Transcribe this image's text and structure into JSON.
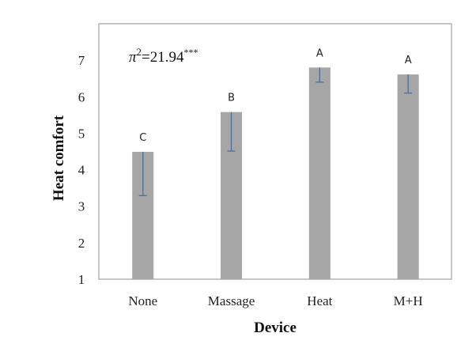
{
  "chart_data": {
    "type": "bar",
    "title": "",
    "xlabel": "Device",
    "ylabel": "Heat comfort",
    "categories": [
      "None",
      "Massage",
      "Heat",
      "M+H"
    ],
    "values": [
      4.49,
      5.58,
      6.8,
      6.61
    ],
    "error_minus": [
      1.2,
      1.07,
      0.4,
      0.51
    ],
    "group_letters": [
      "C",
      "B",
      "A",
      "A"
    ],
    "annotation": {
      "symbol": "π",
      "sup": "2",
      "text": "=21.94",
      "stars": "***"
    },
    "ylim": [
      1,
      8
    ],
    "yticks": [
      1,
      2,
      3,
      4,
      5,
      6,
      7
    ],
    "grid": false,
    "legend": "none",
    "colors": {
      "bar": "#a6a6a6",
      "error_bar": "#4a6f9a",
      "frame": "#a0a0a0"
    }
  }
}
